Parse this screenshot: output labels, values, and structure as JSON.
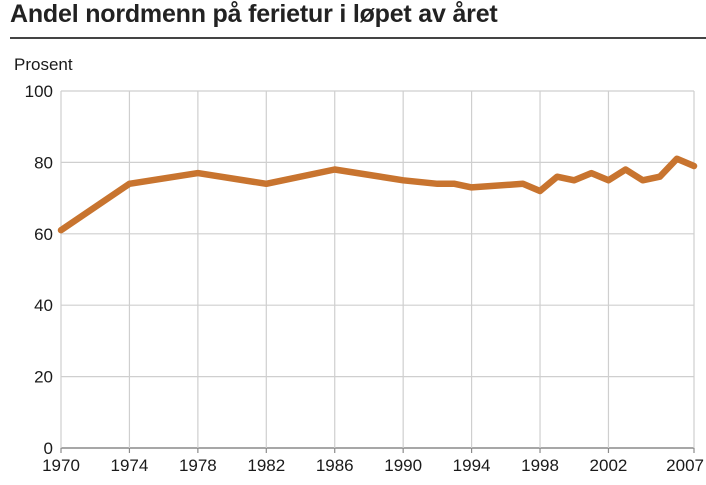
{
  "title": "Andel nordmenn på ferietur i løpet av året",
  "chart_data": {
    "type": "line",
    "title": "Andel nordmenn på ferietur i løpet av året",
    "ylabel": "Prosent",
    "xlabel": "",
    "xlim": [
      1970,
      2007
    ],
    "ylim": [
      0,
      100
    ],
    "x_ticks": [
      1970,
      1974,
      1978,
      1982,
      1986,
      1990,
      1994,
      1998,
      2002,
      2007
    ],
    "y_ticks": [
      0,
      20,
      40,
      60,
      80,
      100
    ],
    "grid": true,
    "legend": "none",
    "series": [
      {
        "color": "#c8742f",
        "x": [
          1970,
          1974,
          1978,
          1982,
          1986,
          1990,
          1992,
          1993,
          1994,
          1997,
          1998,
          1999,
          2000,
          2001,
          2002,
          2003,
          2004,
          2005,
          2006,
          2007
        ],
        "y": [
          61,
          74,
          77,
          74,
          78,
          75,
          74,
          74,
          73,
          74,
          72,
          76,
          75,
          77,
          75,
          78,
          75,
          76,
          81,
          79
        ]
      }
    ]
  }
}
